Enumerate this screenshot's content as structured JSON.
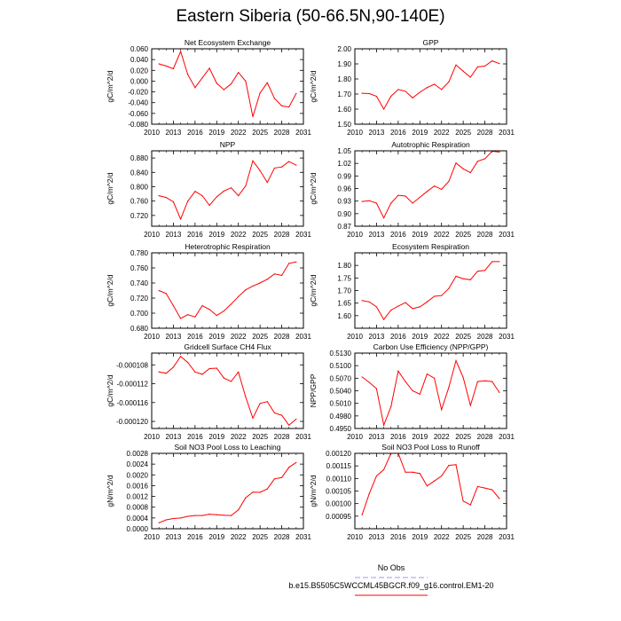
{
  "page": {
    "title": "Eastern Siberia (50-66.5N,90-140E)"
  },
  "legend": {
    "entries": [
      {
        "label": "No Obs",
        "color": "#9999ff",
        "dash": true
      },
      {
        "label": "b.e15.B5505C5WCCML45BGCR.f09_g16.control.EM1-20",
        "color": "#ff0000",
        "dash": false
      }
    ]
  },
  "colors": {
    "series": "#ff0000",
    "axis": "#000000"
  },
  "chart_data": [
    {
      "type": "line",
      "title": "Net Ecosystem Exchange",
      "ylabel": "gC/m^2/d",
      "xlim": [
        2010,
        2031
      ],
      "ylim": [
        -0.08,
        0.06
      ],
      "xticks": [
        2010,
        2013,
        2016,
        2019,
        2022,
        2025,
        2028,
        2031
      ],
      "yticks": [
        -0.08,
        -0.06,
        -0.04,
        -0.02,
        0.0,
        0.02,
        0.04,
        0.06
      ],
      "ytick_labels": [
        "-0.080",
        "-0.060",
        "-0.040",
        "-0.020",
        "0.000",
        "0.020",
        "0.040",
        "0.060"
      ],
      "x": [
        2011,
        2012,
        2013,
        2014,
        2015,
        2016,
        2017,
        2018,
        2019,
        2020,
        2021,
        2022,
        2023,
        2024,
        2025,
        2026,
        2027,
        2028,
        2029,
        2030
      ],
      "values": [
        0.032,
        0.028,
        0.023,
        0.055,
        0.012,
        -0.012,
        0.006,
        0.024,
        -0.004,
        -0.016,
        -0.005,
        0.016,
        0.0,
        -0.066,
        -0.022,
        -0.003,
        -0.032,
        -0.046,
        -0.048,
        -0.023
      ]
    },
    {
      "type": "line",
      "title": "GPP",
      "ylabel": "gC/m^2/d",
      "xlim": [
        2010,
        2031
      ],
      "ylim": [
        1.5,
        2.0
      ],
      "xticks": [
        2010,
        2013,
        2016,
        2019,
        2022,
        2025,
        2028,
        2031
      ],
      "yticks": [
        1.5,
        1.6,
        1.7,
        1.8,
        1.9,
        2.0
      ],
      "ytick_labels": [
        "1.50",
        "1.60",
        "1.70",
        "1.80",
        "1.90",
        "2.00"
      ],
      "x": [
        2011,
        2012,
        2013,
        2014,
        2015,
        2016,
        2017,
        2018,
        2019,
        2020,
        2021,
        2022,
        2023,
        2024,
        2025,
        2026,
        2027,
        2028,
        2029,
        2030
      ],
      "values": [
        1.705,
        1.703,
        1.685,
        1.6,
        1.685,
        1.73,
        1.718,
        1.675,
        1.712,
        1.743,
        1.765,
        1.73,
        1.78,
        1.893,
        1.852,
        1.812,
        1.88,
        1.885,
        1.92,
        1.902
      ]
    },
    {
      "type": "line",
      "title": "NPP",
      "ylabel": "gC/m^2/d",
      "xlim": [
        2010,
        2031
      ],
      "ylim": [
        0.69,
        0.9
      ],
      "xticks": [
        2010,
        2013,
        2016,
        2019,
        2022,
        2025,
        2028,
        2031
      ],
      "yticks": [
        0.72,
        0.76,
        0.8,
        0.84,
        0.88
      ],
      "ytick_labels": [
        "0.720",
        "0.760",
        "0.800",
        "0.840",
        "0.880"
      ],
      "x": [
        2011,
        2012,
        2013,
        2014,
        2015,
        2016,
        2017,
        2018,
        2019,
        2020,
        2021,
        2022,
        2023,
        2024,
        2025,
        2026,
        2027,
        2028,
        2029,
        2030
      ],
      "values": [
        0.775,
        0.77,
        0.758,
        0.71,
        0.76,
        0.787,
        0.775,
        0.748,
        0.772,
        0.788,
        0.797,
        0.775,
        0.802,
        0.872,
        0.845,
        0.812,
        0.852,
        0.855,
        0.87,
        0.86
      ]
    },
    {
      "type": "line",
      "title": "Autotrophic Respiration",
      "ylabel": "gC/m^2/d",
      "xlim": [
        2010,
        2031
      ],
      "ylim": [
        0.87,
        1.05
      ],
      "xticks": [
        2010,
        2013,
        2016,
        2019,
        2022,
        2025,
        2028,
        2031
      ],
      "yticks": [
        0.87,
        0.9,
        0.93,
        0.96,
        0.99,
        1.02,
        1.05
      ],
      "ytick_labels": [
        "0.87",
        "0.90",
        "0.93",
        "0.96",
        "0.99",
        "1.02",
        "1.05"
      ],
      "x": [
        2011,
        2012,
        2013,
        2014,
        2015,
        2016,
        2017,
        2018,
        2019,
        2020,
        2021,
        2022,
        2023,
        2024,
        2025,
        2026,
        2027,
        2028,
        2029,
        2030
      ],
      "values": [
        0.929,
        0.931,
        0.925,
        0.89,
        0.925,
        0.944,
        0.942,
        0.925,
        0.939,
        0.953,
        0.966,
        0.958,
        0.977,
        1.021,
        1.007,
        0.998,
        1.025,
        1.031,
        1.049,
        1.047
      ]
    },
    {
      "type": "line",
      "title": "Heterotrophic Respiration",
      "ylabel": "gC/m^2/d",
      "xlim": [
        2010,
        2031
      ],
      "ylim": [
        0.68,
        0.78
      ],
      "xticks": [
        2010,
        2013,
        2016,
        2019,
        2022,
        2025,
        2028,
        2031
      ],
      "yticks": [
        0.68,
        0.7,
        0.72,
        0.74,
        0.76,
        0.78
      ],
      "ytick_labels": [
        "0.680",
        "0.700",
        "0.720",
        "0.740",
        "0.760",
        "0.780"
      ],
      "x": [
        2011,
        2012,
        2013,
        2014,
        2015,
        2016,
        2017,
        2018,
        2019,
        2020,
        2021,
        2022,
        2023,
        2024,
        2025,
        2026,
        2027,
        2028,
        2029,
        2030
      ],
      "values": [
        0.73,
        0.726,
        0.71,
        0.693,
        0.698,
        0.695,
        0.71,
        0.705,
        0.697,
        0.703,
        0.712,
        0.722,
        0.731,
        0.736,
        0.74,
        0.745,
        0.752,
        0.75,
        0.766,
        0.768
      ]
    },
    {
      "type": "line",
      "title": "Ecosystem Respiration",
      "ylabel": "gC/m^2/d",
      "xlim": [
        2010,
        2031
      ],
      "ylim": [
        1.55,
        1.85
      ],
      "xticks": [
        2010,
        2013,
        2016,
        2019,
        2022,
        2025,
        2028,
        2031
      ],
      "yticks": [
        1.6,
        1.65,
        1.7,
        1.75,
        1.8
      ],
      "ytick_labels": [
        "1.60",
        "1.65",
        "1.70",
        "1.75",
        "1.80"
      ],
      "x": [
        2011,
        2012,
        2013,
        2014,
        2015,
        2016,
        2017,
        2018,
        2019,
        2020,
        2021,
        2022,
        2023,
        2024,
        2025,
        2026,
        2027,
        2028,
        2029,
        2030
      ],
      "values": [
        1.66,
        1.655,
        1.635,
        1.585,
        1.622,
        1.638,
        1.652,
        1.628,
        1.635,
        1.655,
        1.677,
        1.68,
        1.708,
        1.757,
        1.747,
        1.743,
        1.777,
        1.78,
        1.815,
        1.815
      ]
    },
    {
      "type": "line",
      "title": "Gridcell Surface CH4 Flux",
      "ylabel": "gC/m^2/d",
      "xlim": [
        2010,
        2031
      ],
      "ylim": [
        -0.0001215,
        -0.0001055
      ],
      "xticks": [
        2010,
        2013,
        2016,
        2019,
        2022,
        2025,
        2028,
        2031
      ],
      "yticks": [
        -0.00012,
        -0.000116,
        -0.000112,
        -0.000108
      ],
      "ytick_labels": [
        "-0.000120",
        "-0.000116",
        "-0.000112",
        "-0.000108"
      ],
      "x": [
        2011,
        2012,
        2013,
        2014,
        2015,
        2016,
        2017,
        2018,
        2019,
        2020,
        2021,
        2022,
        2023,
        2024,
        2025,
        2026,
        2027,
        2028,
        2029,
        2030
      ],
      "values": [
        -0.0001095,
        -0.0001098,
        -0.0001085,
        -0.0001062,
        -0.0001075,
        -0.0001095,
        -0.00011,
        -0.0001088,
        -0.0001087,
        -0.0001108,
        -0.0001115,
        -0.0001095,
        -0.0001148,
        -0.0001193,
        -0.0001162,
        -0.0001158,
        -0.0001182,
        -0.0001187,
        -0.0001208,
        -0.0001195
      ]
    },
    {
      "type": "line",
      "title": "Carbon Use Efficiency (NPP/GPP)",
      "ylabel": "NPP/GPP",
      "xlim": [
        2010,
        2031
      ],
      "ylim": [
        0.495,
        0.513
      ],
      "xticks": [
        2010,
        2013,
        2016,
        2019,
        2022,
        2025,
        2028,
        2031
      ],
      "yticks": [
        0.495,
        0.498,
        0.501,
        0.504,
        0.507,
        0.51,
        0.513
      ],
      "ytick_labels": [
        "0.4950",
        "0.4980",
        "0.5010",
        "0.5040",
        "0.5070",
        "0.5100",
        "0.5130"
      ],
      "x": [
        2011,
        2012,
        2013,
        2014,
        2015,
        2016,
        2017,
        2018,
        2019,
        2020,
        2021,
        2022,
        2023,
        2024,
        2025,
        2026,
        2027,
        2028,
        2029,
        2030
      ],
      "values": [
        0.5073,
        0.506,
        0.5045,
        0.4958,
        0.5002,
        0.5087,
        0.5062,
        0.504,
        0.5032,
        0.508,
        0.507,
        0.4995,
        0.5048,
        0.5112,
        0.5072,
        0.5005,
        0.5062,
        0.5064,
        0.5062,
        0.5036
      ]
    },
    {
      "type": "line",
      "title": "Soil NO3 Pool Loss to Leaching",
      "ylabel": "gN/m^2/d",
      "xlim": [
        2010,
        2031
      ],
      "ylim": [
        0.0,
        0.0028
      ],
      "xticks": [
        2010,
        2013,
        2016,
        2019,
        2022,
        2025,
        2028,
        2031
      ],
      "yticks": [
        0.0,
        0.0004,
        0.0008,
        0.0012,
        0.0016,
        0.002,
        0.0024,
        0.0028
      ],
      "ytick_labels": [
        "0.0000",
        "0.0004",
        "0.0008",
        "0.0012",
        "0.0016",
        "0.0020",
        "0.0024",
        "0.0028"
      ],
      "x": [
        2011,
        2012,
        2013,
        2014,
        2015,
        2016,
        2017,
        2018,
        2019,
        2020,
        2021,
        2022,
        2023,
        2024,
        2025,
        2026,
        2027,
        2028,
        2029,
        2030
      ],
      "values": [
        0.00022,
        0.00033,
        0.00038,
        0.0004,
        0.00046,
        0.00049,
        0.00049,
        0.00054,
        0.00052,
        0.0005,
        0.00049,
        0.0007,
        0.00115,
        0.00136,
        0.00135,
        0.00148,
        0.00185,
        0.0019,
        0.00228,
        0.00246
      ]
    },
    {
      "type": "line",
      "title": "Soil NO3 Pool Loss to Runoff",
      "ylabel": "gN/m^2/d",
      "xlim": [
        2010,
        2031
      ],
      "ylim": [
        0.0009,
        0.0012
      ],
      "xticks": [
        2010,
        2013,
        2016,
        2019,
        2022,
        2025,
        2028,
        2031
      ],
      "yticks": [
        0.00095,
        0.001,
        0.00105,
        0.0011,
        0.00115,
        0.0012
      ],
      "ytick_labels": [
        "0.00095",
        "0.00100",
        "0.00105",
        "0.00110",
        "0.00115",
        "0.00120"
      ],
      "x": [
        2011,
        2012,
        2013,
        2014,
        2015,
        2016,
        2017,
        2018,
        2019,
        2020,
        2021,
        2022,
        2023,
        2024,
        2025,
        2026,
        2027,
        2028,
        2029,
        2030
      ],
      "values": [
        0.000955,
        0.00104,
        0.00111,
        0.001135,
        0.0012,
        0.0012,
        0.001125,
        0.001125,
        0.00112,
        0.00107,
        0.00109,
        0.00111,
        0.001152,
        0.001155,
        0.00101,
        0.000995,
        0.001068,
        0.001062,
        0.001055,
        0.00102
      ]
    }
  ]
}
